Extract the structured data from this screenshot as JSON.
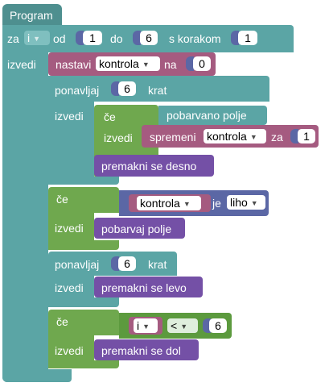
{
  "program": {
    "title": "Program"
  },
  "for_loop": {
    "label_za": "za",
    "var": "i",
    "label_od": "od",
    "from": "1",
    "label_do": "do",
    "to": "6",
    "label_step": "s korakom",
    "step": "1",
    "label_do_body": "izvedi"
  },
  "set_block": {
    "label": "nastavi",
    "var": "kontrola",
    "label_to": "na",
    "value": "0"
  },
  "repeat1": {
    "label": "ponavljaj",
    "count": "6",
    "label_times": "krat",
    "label_do": "izvedi"
  },
  "if1": {
    "label": "če",
    "condition": "pobarvano polje",
    "label_do": "izvedi"
  },
  "change_block": {
    "label": "spremeni",
    "var": "kontrola",
    "label_by": "za",
    "value": "1"
  },
  "move_right": {
    "label": "premakni se desno"
  },
  "if2": {
    "label": "če",
    "var": "kontrola",
    "label_is": "je",
    "parity": "liho",
    "label_do": "izvedi"
  },
  "paint": {
    "label": "pobarvaj polje"
  },
  "repeat2": {
    "label": "ponavljaj",
    "count": "6",
    "label_times": "krat",
    "label_do": "izvedi"
  },
  "move_left": {
    "label": "premakni se levo"
  },
  "if3": {
    "label": "če",
    "var": "i",
    "op": "<",
    "value": "6",
    "label_do": "izvedi"
  },
  "move_down": {
    "label": "premakni se dol"
  },
  "colors": {
    "loop": "#5ba5a5",
    "variable": "#a55b80",
    "logic": "#6fa84e",
    "action": "#7450a6",
    "math": "#5b67a5"
  }
}
